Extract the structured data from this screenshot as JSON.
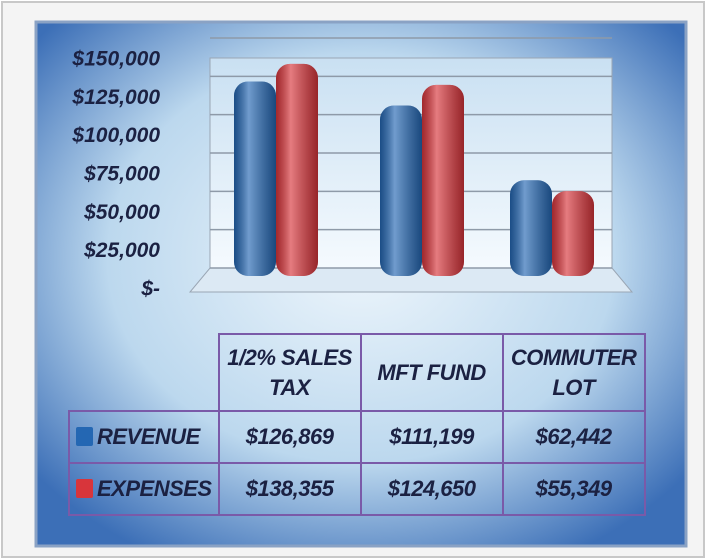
{
  "chart_data": {
    "type": "bar",
    "categories": [
      "1/2% SALES TAX",
      "MFT FUND",
      "COMMUTER LOT"
    ],
    "series": [
      {
        "name": "REVENUE",
        "color": "#2467b3",
        "values": [
          126869,
          111199,
          62442
        ],
        "value_labels": [
          "$126,869",
          "$111,199",
          "$62,442"
        ]
      },
      {
        "name": "EXPENSES",
        "color": "#d8353b",
        "values": [
          138355,
          124650,
          55349
        ],
        "value_labels": [
          "$138,355",
          "$124,650",
          "$55,349"
        ]
      }
    ],
    "ylim": [
      0,
      150000
    ],
    "yticks": [
      {
        "value": 0,
        "label": "$-"
      },
      {
        "value": 25000,
        "label": "$25,000"
      },
      {
        "value": 50000,
        "label": "$50,000"
      },
      {
        "value": 75000,
        "label": "$75,000"
      },
      {
        "value": 100000,
        "label": "$100,000"
      },
      {
        "value": 125000,
        "label": "$125,000"
      },
      {
        "value": 150000,
        "label": "$150,000"
      }
    ],
    "grid": true
  }
}
